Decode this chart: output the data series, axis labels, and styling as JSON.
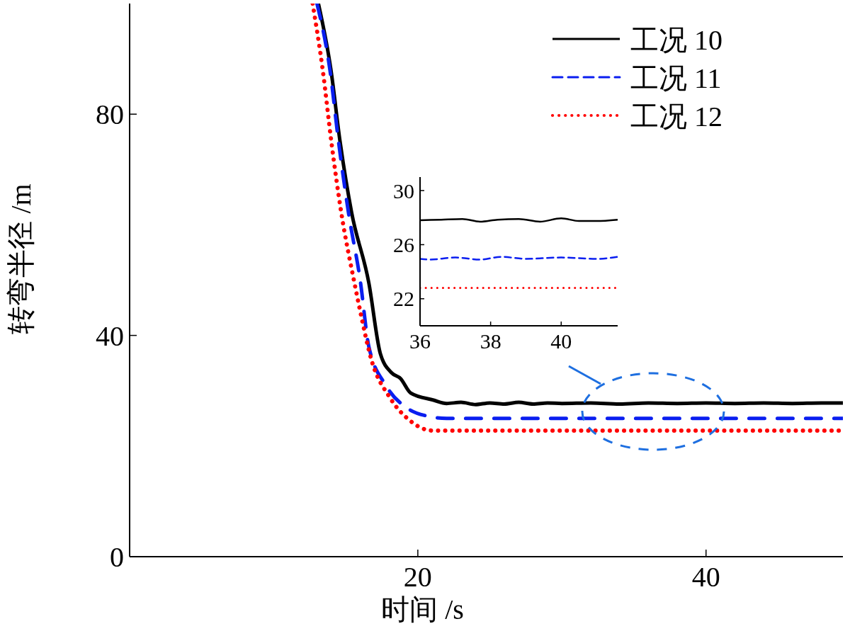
{
  "chart_data": [
    {
      "type": "line",
      "xlabel": "时间 /s",
      "ylabel": "转弯半径 /m",
      "xlim": [
        0,
        49.5
      ],
      "ylim": [
        0,
        100
      ],
      "xticks": [
        20,
        40
      ],
      "yticks": [
        0,
        40,
        80
      ],
      "legend": "top right",
      "grid": false,
      "series": [
        {
          "name": "工况 10",
          "color": "#000000",
          "line_style": "solid",
          "x": [
            13.1,
            13.97,
            14.6,
            15.4,
            16.6,
            17.4,
            18.2,
            18.8,
            19.5,
            21.1,
            22,
            23,
            24,
            25,
            26,
            27,
            28,
            29,
            30,
            32,
            34,
            36,
            38,
            40,
            42,
            44,
            46,
            48,
            49.5
          ],
          "values": [
            100,
            88,
            75.1,
            62.3,
            49.5,
            36.7,
            33.2,
            32.2,
            29.6,
            28.3,
            27.7,
            27.9,
            27.5,
            27.8,
            27.6,
            27.9,
            27.6,
            27.8,
            27.7,
            27.8,
            27.6,
            27.8,
            27.7,
            27.8,
            27.7,
            27.8,
            27.7,
            27.8,
            27.8
          ]
        },
        {
          "name": "工况 11",
          "color": "#0a1ef0",
          "line_style": "dashed",
          "x": [
            13,
            13.9,
            14.5,
            15.2,
            16,
            16.6,
            17.8,
            19.3,
            20.7,
            22,
            25,
            30,
            35,
            40,
            45,
            49.5
          ],
          "values": [
            100,
            88,
            75,
            62,
            50,
            38,
            30.9,
            26.8,
            25.4,
            25,
            25,
            25,
            25,
            25,
            25,
            25
          ]
        },
        {
          "name": "工况 12",
          "color": "#ff0000",
          "line_style": "dotted",
          "x": [
            12.7,
            13.4,
            14,
            14.7,
            15.6,
            16,
            16.8,
            18,
            19.5,
            21,
            25,
            30,
            35,
            40,
            45,
            49.5
          ],
          "values": [
            100,
            88,
            75,
            62,
            49.5,
            44.4,
            35.4,
            29,
            24.5,
            22.8,
            22.8,
            22.8,
            22.8,
            22.8,
            22.8,
            22.8
          ]
        }
      ]
    },
    {
      "type": "line",
      "xlim": [
        36,
        41.6
      ],
      "ylim": [
        20,
        31
      ],
      "xticks": [
        36,
        38,
        40
      ],
      "yticks": [
        22,
        26,
        30
      ],
      "grid": false,
      "series": [
        {
          "color": "#000000",
          "line_style": "solid",
          "x": [
            36,
            36.6,
            37.2,
            37.7,
            38.2,
            38.8,
            39.4,
            40,
            40.5,
            41,
            41.6
          ],
          "values": [
            27.8,
            27.85,
            27.9,
            27.7,
            27.85,
            27.9,
            27.7,
            27.95,
            27.75,
            27.75,
            27.85
          ]
        },
        {
          "color": "#0a1ef0",
          "line_style": "dashed",
          "x": [
            36,
            36.3,
            37,
            37.7,
            38.3,
            39,
            40,
            41,
            41.6
          ],
          "values": [
            24.95,
            24.9,
            25.05,
            24.9,
            25.1,
            24.95,
            25.05,
            24.95,
            25.1
          ]
        },
        {
          "color": "#ff0000",
          "line_style": "dotted",
          "x": [
            36,
            37,
            38,
            39,
            40,
            41,
            41.6
          ],
          "values": [
            22.8,
            22.8,
            22.8,
            22.8,
            22.8,
            22.8,
            22.8
          ]
        }
      ]
    }
  ]
}
